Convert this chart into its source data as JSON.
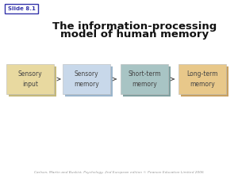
{
  "title_line1": "The information-processing",
  "title_line2": "model of human memory",
  "slide_label": "Slide 8.1",
  "boxes": [
    {
      "label": "Sensory\ninput",
      "color": "#e8d9a0",
      "shadow": "#c4b87a"
    },
    {
      "label": "Sensory\nmemory",
      "color": "#c8d8ea",
      "shadow": "#9ab5cc"
    },
    {
      "label": "Short-term\nmemory",
      "color": "#a8c4c4",
      "shadow": "#80a0a0"
    },
    {
      "label": "Long-term\nmemory",
      "color": "#e8c88a",
      "shadow": "#c8a060"
    }
  ],
  "footer": "Carlson, Martin and Buskist, Psychology, 2nd European edition © Pearson Education Limited 2006",
  "background": "#ffffff",
  "title_color": "#111111",
  "box_text_color": "#444444",
  "slide_border_color": "#3333aa",
  "slide_text_color": "#3333aa"
}
